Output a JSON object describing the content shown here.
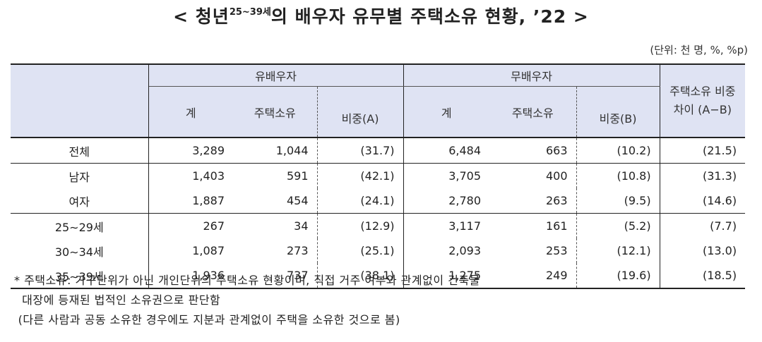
{
  "title": {
    "prefix": "< 청년",
    "sup": "25~39세",
    "suffix": "의 배우자 유무별 주택소유 현황, ’22 >"
  },
  "unit": "(단위: 천 명, %, %p)",
  "headers": {
    "married": "유배우자",
    "unmarried": "무배우자",
    "diff": "주택소유 비중 차이 (A−B)",
    "total": "계",
    "own": "주택소유",
    "ratio_a": "비중(A)",
    "ratio_b": "비중(B)"
  },
  "rows": [
    {
      "label": "전체",
      "m_total": "3,289",
      "m_own": "1,044",
      "m_ratio": "(31.7)",
      "u_total": "6,484",
      "u_own": "663",
      "u_ratio": "(10.2)",
      "diff": "(21.5)"
    },
    {
      "label": "남자",
      "m_total": "1,403",
      "m_own": "591",
      "m_ratio": "(42.1)",
      "u_total": "3,705",
      "u_own": "400",
      "u_ratio": "(10.8)",
      "diff": "(31.3)"
    },
    {
      "label": "여자",
      "m_total": "1,887",
      "m_own": "454",
      "m_ratio": "(24.1)",
      "u_total": "2,780",
      "u_own": "263",
      "u_ratio": "(9.5)",
      "diff": "(14.6)"
    },
    {
      "label": "25∼29세",
      "m_total": "267",
      "m_own": "34",
      "m_ratio": "(12.9)",
      "u_total": "3,117",
      "u_own": "161",
      "u_ratio": "(5.2)",
      "diff": "(7.7)"
    },
    {
      "label": "30∼34세",
      "m_total": "1,087",
      "m_own": "273",
      "m_ratio": "(25.1)",
      "u_total": "2,093",
      "u_own": "253",
      "u_ratio": "(12.1)",
      "diff": "(13.0)"
    },
    {
      "label": "35∼39세",
      "m_total": "1,936",
      "m_own": "737",
      "m_ratio": "(38.1)",
      "u_total": "1,275",
      "u_own": "249",
      "u_ratio": "(19.6)",
      "diff": "(18.5)"
    }
  ],
  "notes": [
    "* 주택소유: 가구단위가 아닌 개인단위의 주택소유 현황이며, 직접 거주 여부와 관계없이 건축물",
    "  대장에 등재된 법적인 소유권으로 판단함",
    " (다른 사람과 공동 소유한 경우에도 지분과 관계없이 주택을 소유한 것으로 봄)"
  ]
}
